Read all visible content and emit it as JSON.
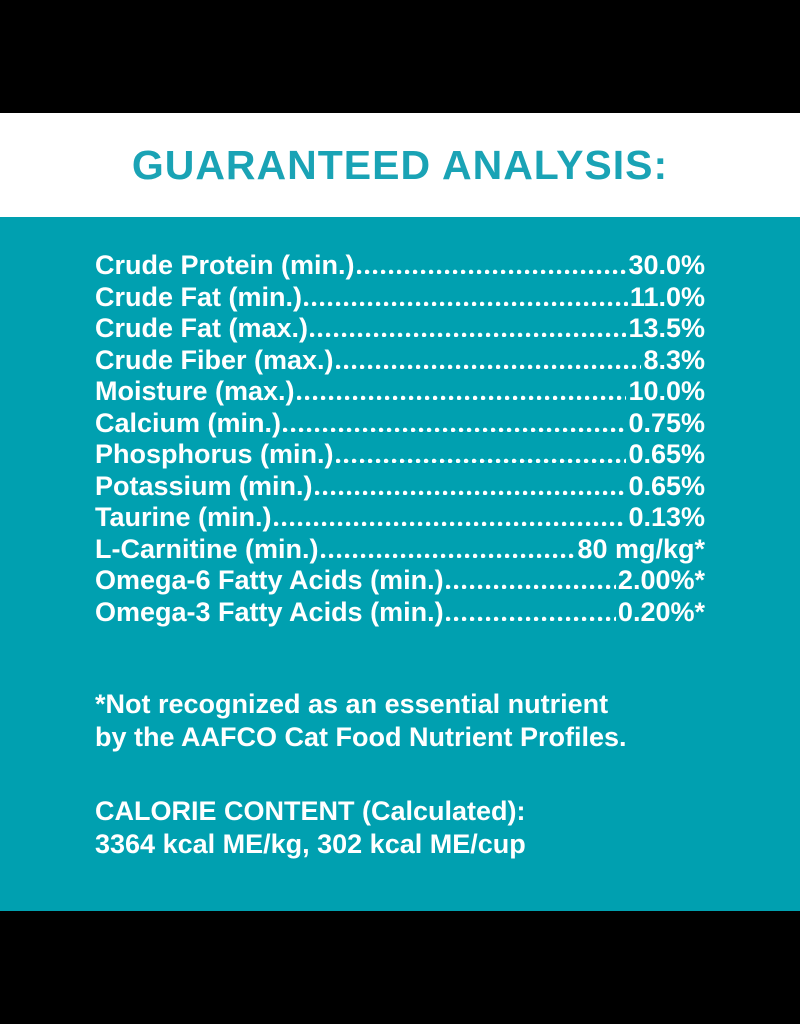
{
  "page": {
    "colors": {
      "panel_teal": "#00a0b0",
      "heading_teal": "#1aa3b5",
      "text_white": "#ffffff",
      "bar_black": "#000000"
    }
  },
  "header": {
    "title": "GUARANTEED ANALYSIS:"
  },
  "analysis": {
    "rows": [
      {
        "label": "Crude Protein (min.)",
        "value": "30.0%"
      },
      {
        "label": "Crude Fat (min.)",
        "value": "11.0%"
      },
      {
        "label": "Crude Fat (max.)",
        "value": "13.5%"
      },
      {
        "label": "Crude Fiber (max.)",
        "value": "8.3%"
      },
      {
        "label": "Moisture (max.)",
        "value": "10.0%"
      },
      {
        "label": "Calcium (min.)",
        "value": "0.75%"
      },
      {
        "label": "Phosphorus (min.)",
        "value": "0.65%"
      },
      {
        "label": "Potassium (min.)",
        "value": "0.65%"
      },
      {
        "label": "Taurine (min.)",
        "value": "0.13%"
      },
      {
        "label": "L-Carnitine (min.)",
        "value": "80 mg/kg*"
      },
      {
        "label": "Omega-6 Fatty Acids (min.)",
        "value": "2.00%*"
      },
      {
        "label": "Omega-3 Fatty Acids (min.)",
        "value": "0.20%*"
      }
    ]
  },
  "footnote": {
    "line1": "*Not recognized as an essential nutrient",
    "line2": "by the AAFCO Cat Food Nutrient Profiles."
  },
  "calories": {
    "heading": "CALORIE CONTENT (Calculated):",
    "values": "3364 kcal ME/kg, 302 kcal ME/cup"
  }
}
